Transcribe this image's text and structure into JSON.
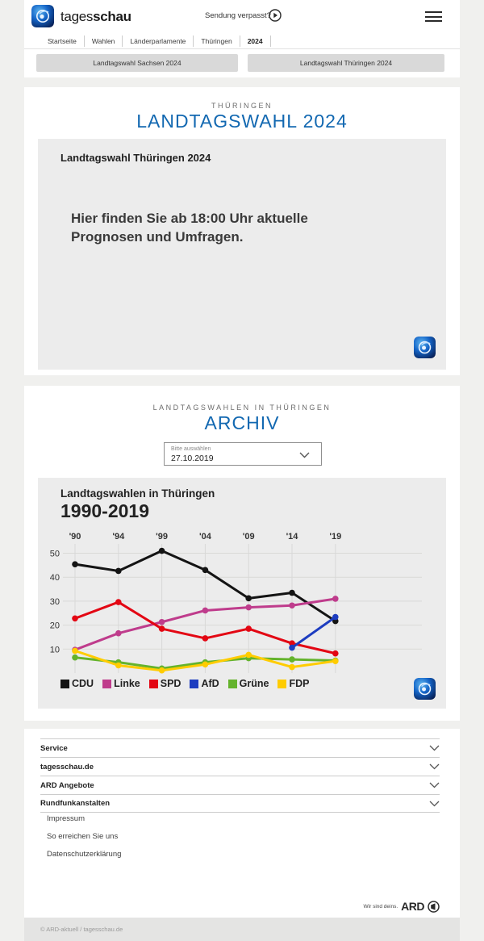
{
  "header": {
    "brand_regular": "tages",
    "brand_bold": "schau",
    "sendung_verpasst": "Sendung verpasst?",
    "nav": [
      {
        "label": "Startseite",
        "active": false
      },
      {
        "label": "Wahlen",
        "active": false
      },
      {
        "label": "Länderparlamente",
        "active": false
      },
      {
        "label": "Thüringen",
        "active": false
      },
      {
        "label": "2024",
        "active": true
      }
    ]
  },
  "election_buttons": [
    {
      "label": "Landtagswahl Sachsen 2024"
    },
    {
      "label": "Landtagswahl Thüringen 2024"
    }
  ],
  "main_section": {
    "kicker": "THÜRINGEN",
    "title": "LANDTAGSWAHL 2024",
    "card": {
      "title": "Landtagswahl Thüringen 2024",
      "message": "Hier finden Sie ab 18:00 Uhr aktuelle Prognosen und Umfragen."
    }
  },
  "archive_section": {
    "kicker": "LANDTAGSWAHLEN IN THÜRINGEN",
    "title": "ARCHIV",
    "dropdown": {
      "label": "Bitte auswählen",
      "value": "27.10.2019"
    }
  },
  "chart_data": {
    "type": "line",
    "title": "Landtagswahlen in Thüringen",
    "subtitle": "1990-2019",
    "x": [
      1990,
      1994,
      1999,
      2004,
      2009,
      2014,
      2019
    ],
    "x_tick_labels": [
      "'90",
      "'94",
      "'99",
      "'04",
      "'09",
      "'14",
      "'19"
    ],
    "y_ticks": [
      10,
      20,
      30,
      40,
      50
    ],
    "ylim": [
      0,
      55
    ],
    "grid": true,
    "legend_position": "bottom",
    "unit": "percent",
    "series": [
      {
        "name": "CDU",
        "color": "#141414",
        "values": [
          45.4,
          42.6,
          51.0,
          43.0,
          31.2,
          33.5,
          21.7
        ]
      },
      {
        "name": "Linke",
        "color": "#bf3c8c",
        "values": [
          9.7,
          16.6,
          21.3,
          26.1,
          27.4,
          28.2,
          31.0
        ]
      },
      {
        "name": "SPD",
        "color": "#e30613",
        "values": [
          22.8,
          29.6,
          18.5,
          14.5,
          18.5,
          12.4,
          8.2
        ]
      },
      {
        "name": "AfD",
        "color": "#1d3dc0",
        "values": [
          null,
          null,
          null,
          null,
          null,
          10.6,
          23.4
        ]
      },
      {
        "name": "Grüne",
        "color": "#64b32c",
        "values": [
          6.5,
          4.5,
          1.9,
          4.5,
          6.2,
          5.7,
          5.2
        ]
      },
      {
        "name": "FDP",
        "color": "#fc0",
        "values": [
          9.3,
          3.2,
          1.1,
          3.6,
          7.6,
          2.5,
          5.0
        ]
      }
    ]
  },
  "footer": {
    "accordions": [
      "Service",
      "tagesschau.de",
      "ARD Angebote",
      "Rundfunkanstalten"
    ],
    "links": [
      "Impressum",
      "So erreichen Sie uns",
      "Datenschutzerklärung"
    ],
    "ard_claim": "Wir sind deins.",
    "ard_word": "ARD",
    "copyright": "© ARD-aktuell / tagesschau.de"
  },
  "colors": {
    "accent_blue": "#1268b1",
    "card_gray": "#ececec",
    "button_gray": "#d9d9d9"
  }
}
